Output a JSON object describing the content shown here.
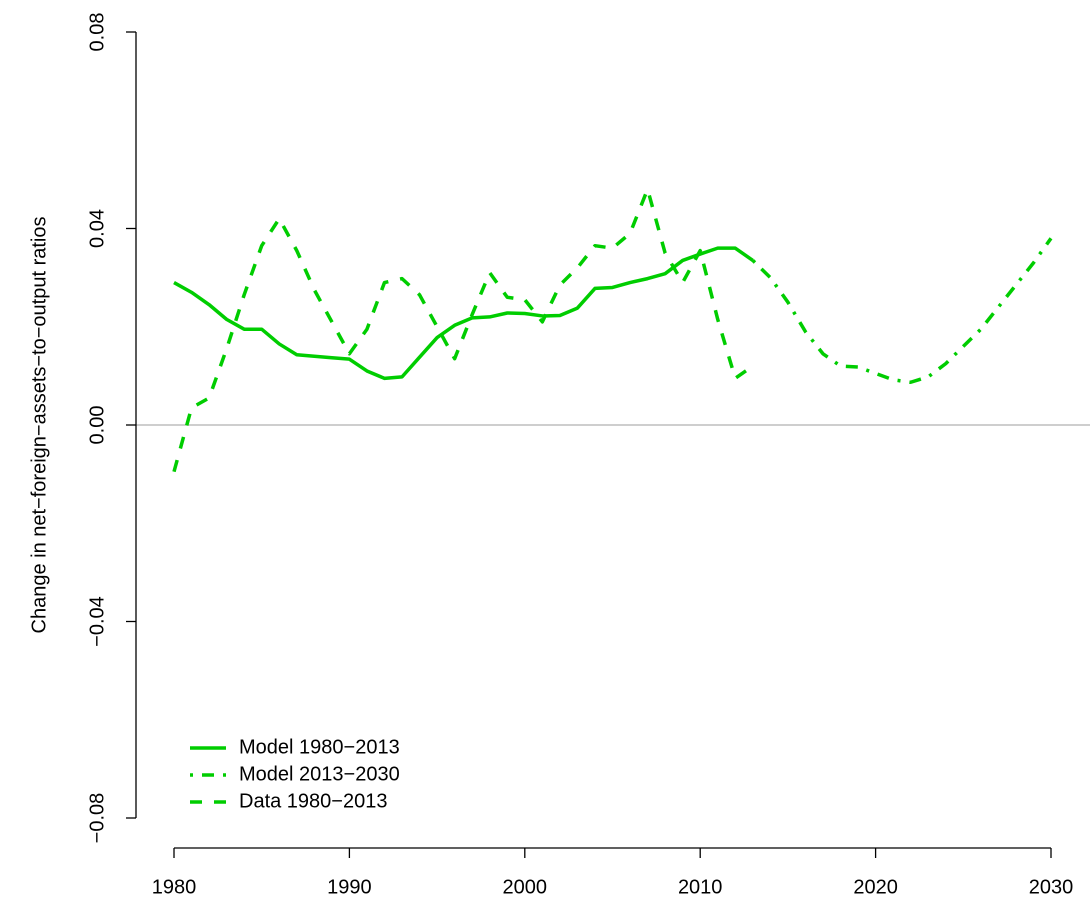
{
  "chart_data": {
    "type": "line",
    "y_label": "Change in net−foreign−assets−to−output ratios",
    "xlim": [
      1980,
      2030
    ],
    "xticks": [
      1980,
      1990,
      2000,
      2010,
      2020,
      2030
    ],
    "ylim": [
      -0.08,
      0.08
    ],
    "yticks": [
      {
        "value": -0.08,
        "label": "−0.08"
      },
      {
        "value": -0.04,
        "label": "−0.04"
      },
      {
        "value": 0,
        "label": "0.00"
      },
      0.04,
      0.08
    ],
    "reference_line": 0,
    "reference_color": "#bebebe",
    "legend": "bottomleft",
    "series": [
      {
        "name": "Model 1980−2013",
        "color": "#00cd00",
        "dash": "solid",
        "x": [
          1980,
          1981,
          1982,
          1983,
          1984,
          1985,
          1986,
          1987,
          1988,
          1989,
          1990,
          1991,
          1992,
          1993,
          1994,
          1995,
          1996,
          1997,
          1998,
          1999,
          2000,
          2001,
          2002,
          2003,
          2004,
          2005,
          2006,
          2007,
          2008,
          2009,
          2010,
          2011,
          2012,
          2013
        ],
        "values": [
          0.029,
          0.027,
          0.0245,
          0.0215,
          0.0195,
          0.0195,
          0.0165,
          0.0143,
          0.014,
          0.0137,
          0.0134,
          0.011,
          0.0095,
          0.0098,
          0.0138,
          0.0178,
          0.0203,
          0.0218,
          0.022,
          0.0228,
          0.0227,
          0.0222,
          0.0223,
          0.0238,
          0.0278,
          0.028,
          0.029,
          0.0298,
          0.0308,
          0.0335,
          0.0348,
          0.036,
          0.036,
          0.0335
        ]
      },
      {
        "name": "Model 2013−2030",
        "color": "#00cd00",
        "dash": "dashdot",
        "x": [
          2013,
          2014,
          2015,
          2016,
          2017,
          2018,
          2019,
          2020,
          2021,
          2022,
          2023,
          2024,
          2025,
          2026,
          2027,
          2028,
          2029,
          2030
        ],
        "values": [
          0.0335,
          0.03,
          0.025,
          0.019,
          0.0145,
          0.012,
          0.0118,
          0.0105,
          0.0092,
          0.0087,
          0.0098,
          0.0125,
          0.016,
          0.0195,
          0.024,
          0.0285,
          0.033,
          0.038
        ]
      },
      {
        "name": "Data 1980−2013",
        "color": "#00cd00",
        "dash": "dashed",
        "x": [
          1980,
          1981,
          1982,
          1983,
          1984,
          1985,
          1986,
          1987,
          1988,
          1989,
          1990,
          1991,
          1992,
          1993,
          1994,
          1995,
          1996,
          1997,
          1998,
          1999,
          2000,
          2001,
          2002,
          2003,
          2004,
          2005,
          2006,
          2007,
          2008,
          2009,
          2010,
          2011,
          2012,
          2013
        ],
        "values": [
          -0.0095,
          0.0035,
          0.0055,
          0.0155,
          0.0265,
          0.0365,
          0.042,
          0.0355,
          0.0275,
          0.021,
          0.0145,
          0.0195,
          0.029,
          0.0298,
          0.0265,
          0.02,
          0.0135,
          0.0225,
          0.031,
          0.026,
          0.0255,
          0.021,
          0.0285,
          0.032,
          0.0365,
          0.036,
          0.039,
          0.048,
          0.035,
          0.029,
          0.0355,
          0.0215,
          0.0095,
          0.012
        ]
      }
    ]
  }
}
